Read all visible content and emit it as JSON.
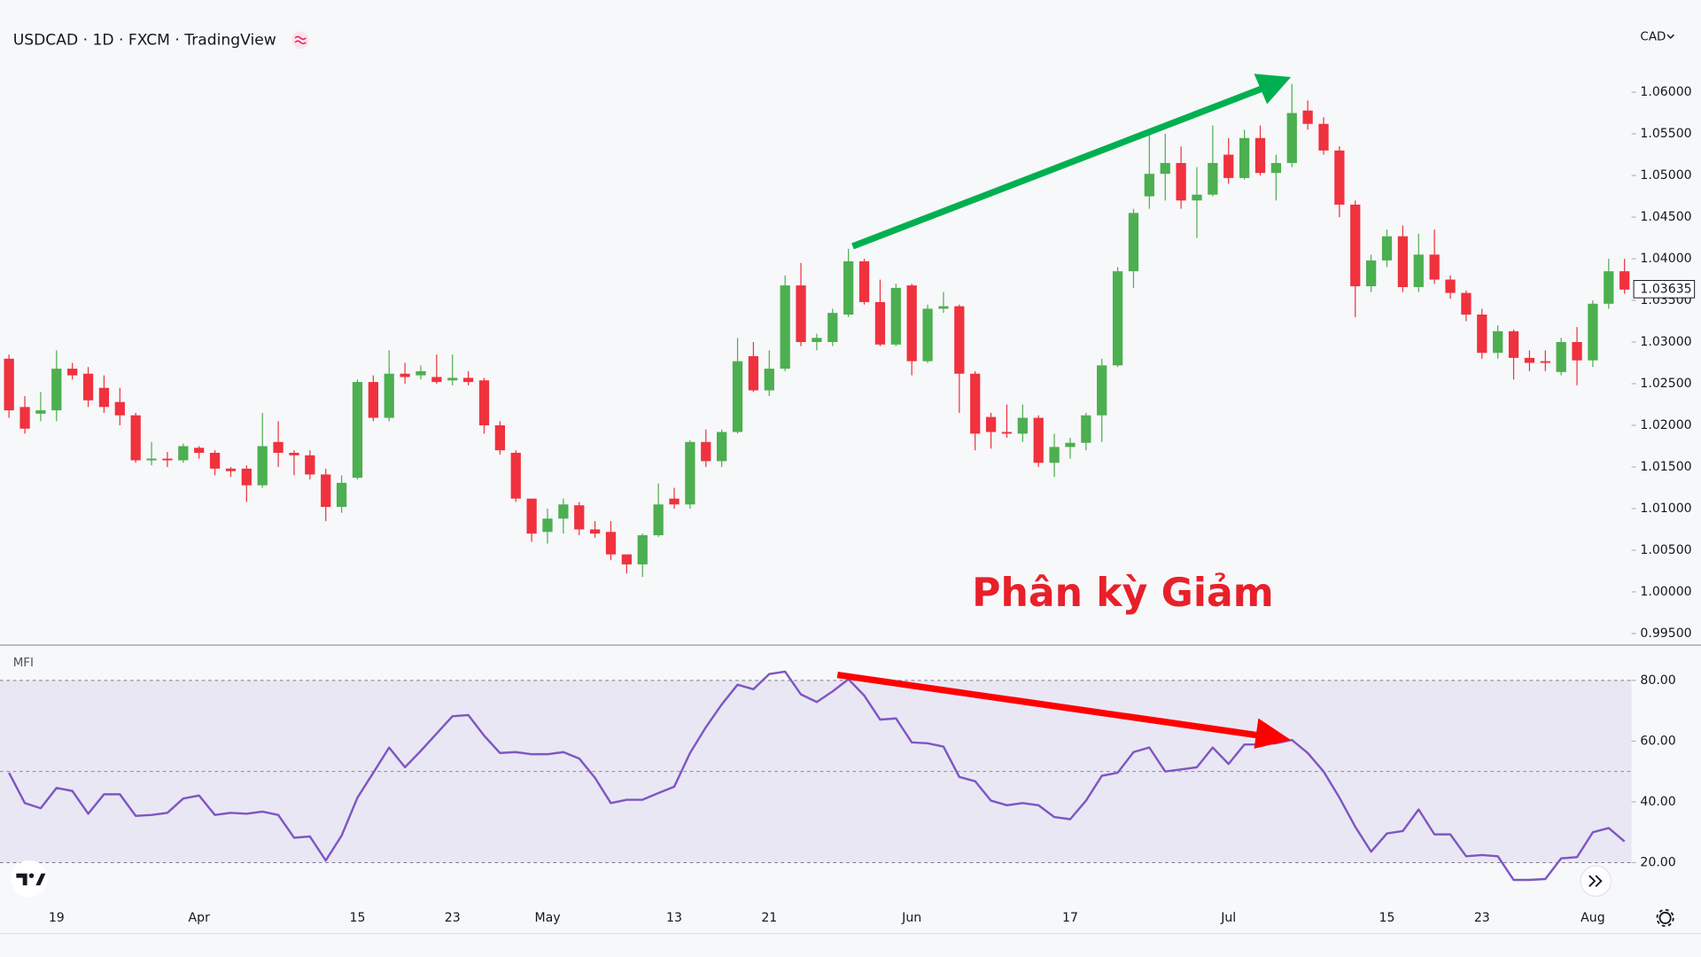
{
  "chart_data": [
    {
      "type": "candlestick",
      "title": "USDCAD · 1D · FXCM · TradingView",
      "currency": "CAD",
      "annotation": "Phân kỳ Giảm",
      "up_color": "#4caf50",
      "down_color": "#f0313e",
      "open": [
        1.028,
        1.0222,
        1.0214,
        1.0218,
        1.0268,
        1.0262,
        1.0245,
        1.0228,
        1.0212,
        1.0158,
        1.016,
        1.0158,
        1.0173,
        1.0167,
        1.0148,
        1.0148,
        1.0128,
        1.018,
        1.0167,
        1.0164,
        1.0141,
        1.0102,
        1.0137,
        1.0252,
        1.0209,
        1.0262,
        1.026,
        1.0258,
        1.0254,
        1.0257,
        1.0254,
        1.02,
        1.0167,
        1.0112,
        1.0072,
        1.0088,
        1.0104,
        1.0075,
        1.0072,
        1.0045,
        1.0033,
        1.0068,
        1.0112,
        1.0105,
        1.018,
        1.0157,
        1.0192,
        1.0283,
        1.0242,
        1.0268,
        1.0368,
        1.03,
        1.03,
        1.0333,
        1.0397,
        1.0348,
        1.0297,
        1.0368,
        1.0277,
        1.034,
        1.0343,
        1.0262,
        1.021,
        1.0192,
        1.019,
        1.0209,
        1.0155,
        1.0174,
        1.0179,
        1.0212,
        1.0272,
        1.0385,
        1.0475,
        1.0502,
        1.0515,
        1.047,
        1.0477,
        1.0525,
        1.0497,
        1.0545,
        1.0503,
        1.0515,
        1.0578,
        1.0562,
        1.053,
        1.0465,
        1.0367,
        1.0398,
        1.0427,
        1.0366,
        1.0405,
        1.0375,
        1.0359,
        1.0333,
        1.0287,
        1.0313,
        1.0281,
        1.0277,
        1.0264,
        1.03,
        1.0278,
        1.0346,
        1.0385
      ],
      "high": [
        1.0285,
        1.0235,
        1.024,
        1.029,
        1.0275,
        1.027,
        1.026,
        1.0245,
        1.0215,
        1.018,
        1.0168,
        1.0178,
        1.0175,
        1.017,
        1.015,
        1.0152,
        1.0215,
        1.0205,
        1.017,
        1.017,
        1.0148,
        1.014,
        1.0255,
        1.026,
        1.029,
        1.0275,
        1.0272,
        1.0285,
        1.0285,
        1.0265,
        1.0257,
        1.0205,
        1.017,
        1.0112,
        1.01,
        1.0112,
        1.0108,
        1.0085,
        1.0085,
        1.0045,
        1.007,
        1.013,
        1.0125,
        1.0182,
        1.0195,
        1.0195,
        1.0305,
        1.03,
        1.029,
        1.038,
        1.0395,
        1.031,
        1.034,
        1.0412,
        1.04,
        1.0375,
        1.037,
        1.037,
        1.0345,
        1.036,
        1.0345,
        1.0265,
        1.0215,
        1.0225,
        1.0225,
        1.0212,
        1.019,
        1.0185,
        1.0215,
        1.028,
        1.039,
        1.046,
        1.055,
        1.055,
        1.0535,
        1.051,
        1.056,
        1.0545,
        1.0555,
        1.056,
        1.0525,
        1.061,
        1.059,
        1.057,
        1.0535,
        1.047,
        1.0405,
        1.0435,
        1.044,
        1.043,
        1.0435,
        1.038,
        1.0362,
        1.034,
        1.032,
        1.0315,
        1.029,
        1.029,
        1.0305,
        1.0318,
        1.035,
        1.04,
        1.04
      ],
      "low": [
        1.0209,
        1.019,
        1.0205,
        1.0205,
        1.0255,
        1.0222,
        1.0215,
        1.02,
        1.0155,
        1.0152,
        1.015,
        1.0155,
        1.016,
        1.014,
        1.0138,
        1.0108,
        1.0125,
        1.015,
        1.014,
        1.0135,
        1.0085,
        1.0095,
        1.0135,
        1.0205,
        1.0205,
        1.025,
        1.0255,
        1.025,
        1.0248,
        1.0248,
        1.019,
        1.0165,
        1.0108,
        1.006,
        1.0058,
        1.007,
        1.0068,
        1.0065,
        1.0038,
        1.0022,
        1.0018,
        1.0066,
        1.01,
        1.01,
        1.015,
        1.015,
        1.019,
        1.024,
        1.0235,
        1.0265,
        1.0295,
        1.029,
        1.0295,
        1.033,
        1.0345,
        1.0295,
        1.0295,
        1.026,
        1.0275,
        1.0335,
        1.0215,
        1.017,
        1.0172,
        1.0185,
        1.018,
        1.015,
        1.0138,
        1.016,
        1.017,
        1.018,
        1.027,
        1.0365,
        1.046,
        1.047,
        1.046,
        1.0425,
        1.0475,
        1.049,
        1.0495,
        1.05,
        1.047,
        1.051,
        1.0555,
        1.0525,
        1.045,
        1.033,
        1.036,
        1.039,
        1.036,
        1.036,
        1.037,
        1.0352,
        1.0325,
        1.028,
        1.028,
        1.0255,
        1.0265,
        1.0265,
        1.026,
        1.0248,
        1.027,
        1.034,
        1.0358
      ],
      "close": [
        1.0218,
        1.0196,
        1.0218,
        1.0268,
        1.026,
        1.023,
        1.0222,
        1.0212,
        1.0158,
        1.016,
        1.0158,
        1.0175,
        1.0167,
        1.0148,
        1.0145,
        1.0128,
        1.0175,
        1.0167,
        1.0164,
        1.0141,
        1.0102,
        1.0131,
        1.0252,
        1.0209,
        1.0262,
        1.0258,
        1.0265,
        1.0252,
        1.0257,
        1.0252,
        1.02,
        1.017,
        1.0112,
        1.007,
        1.0088,
        1.0105,
        1.0075,
        1.007,
        1.0045,
        1.0033,
        1.0068,
        1.0105,
        1.0105,
        1.018,
        1.0157,
        1.0192,
        1.0277,
        1.0242,
        1.0268,
        1.0368,
        1.03,
        1.0305,
        1.0335,
        1.0397,
        1.0348,
        1.0297,
        1.0365,
        1.0277,
        1.034,
        1.0343,
        1.0262,
        1.019,
        1.0192,
        1.019,
        1.0209,
        1.0155,
        1.0174,
        1.0179,
        1.0212,
        1.0272,
        1.0385,
        1.0455,
        1.0502,
        1.0515,
        1.047,
        1.0477,
        1.0515,
        1.0497,
        1.0545,
        1.0503,
        1.0515,
        1.0575,
        1.0562,
        1.053,
        1.0465,
        1.0367,
        1.0398,
        1.0427,
        1.0366,
        1.0405,
        1.0375,
        1.0359,
        1.0333,
        1.0287,
        1.0313,
        1.0281,
        1.0275,
        1.0275,
        1.03,
        1.0278,
        1.0346,
        1.0385,
        1.0363
      ],
      "last_price": 1.03635,
      "ylim": [
        0.99368,
        1.06521
      ],
      "yticks": [
        {
          "value": 0.995,
          "label": "0.99500"
        },
        {
          "value": 1.0,
          "label": "1.00000"
        },
        {
          "value": 1.005,
          "label": "1.00500"
        },
        {
          "value": 1.01,
          "label": "1.01000"
        },
        {
          "value": 1.015,
          "label": "1.01500"
        },
        {
          "value": 1.02,
          "label": "1.02000"
        },
        {
          "value": 1.025,
          "label": "1.02500"
        },
        {
          "value": 1.03,
          "label": "1.03000"
        },
        {
          "value": 1.035,
          "label": "1.03500"
        },
        {
          "value": 1.04,
          "label": "1.04000"
        },
        {
          "value": 1.045,
          "label": "1.04500"
        },
        {
          "value": 1.05,
          "label": "1.05000"
        },
        {
          "value": 1.055,
          "label": "1.05500"
        },
        {
          "value": 1.06,
          "label": "1.06000"
        }
      ]
    },
    {
      "type": "line",
      "title": "MFI",
      "color": "#7e57c2",
      "band_color": "#7e57c2",
      "band_levels": [
        20,
        50,
        80
      ],
      "categories": [
        null,
        null,
        null,
        "19",
        null,
        null,
        null,
        null,
        null,
        null,
        null,
        null,
        "Apr",
        null,
        null,
        null,
        null,
        null,
        null,
        null,
        null,
        null,
        "15",
        null,
        null,
        null,
        null,
        null,
        "23",
        null,
        null,
        null,
        null,
        null,
        "May",
        null,
        null,
        null,
        null,
        null,
        null,
        null,
        "13",
        null,
        null,
        null,
        null,
        null,
        "21",
        null,
        null,
        null,
        null,
        null,
        null,
        null,
        null,
        "Jun",
        null,
        null,
        null,
        null,
        null,
        null,
        null,
        null,
        null,
        "17",
        null,
        null,
        null,
        null,
        null,
        null,
        null,
        null,
        null,
        "Jul",
        null,
        null,
        null,
        null,
        null,
        null,
        null,
        null,
        null,
        "15",
        null,
        null,
        null,
        null,
        null,
        "23",
        null,
        null,
        null,
        null,
        null,
        null,
        "Aug",
        null,
        null
      ],
      "values": [
        49.6,
        39.6,
        37.9,
        44.6,
        43.6,
        36.1,
        42.5,
        42.5,
        35.4,
        35.7,
        36.4,
        41.1,
        42.1,
        35.7,
        36.4,
        36.1,
        36.8,
        35.7,
        28.2,
        28.6,
        20.7,
        28.9,
        41.4,
        49.6,
        57.9,
        51.4,
        56.8,
        62.5,
        68.2,
        68.6,
        61.8,
        56.1,
        56.4,
        55.7,
        55.7,
        56.4,
        54.3,
        47.9,
        39.6,
        40.7,
        40.7,
        42.9,
        45.0,
        56.1,
        64.6,
        72.1,
        78.6,
        77.1,
        82.1,
        82.9,
        75.4,
        72.9,
        76.4,
        80.4,
        75.0,
        67.1,
        67.5,
        59.6,
        59.3,
        58.2,
        48.2,
        46.8,
        40.4,
        38.9,
        39.6,
        38.9,
        35.0,
        34.3,
        40.4,
        48.6,
        49.6,
        56.4,
        57.9,
        50.0,
        50.7,
        51.4,
        57.9,
        52.5,
        58.9,
        58.9,
        59.3,
        60.4,
        56.1,
        50.0,
        41.4,
        31.8,
        23.6,
        29.6,
        30.4,
        37.5,
        29.3,
        29.3,
        22.1,
        22.5,
        22.1,
        14.3,
        14.3,
        14.6,
        21.4,
        21.8,
        30.0,
        31.4,
        27.0
      ],
      "ylim": [
        7.5,
        90.4
      ],
      "yticks": [
        {
          "value": 20,
          "label": "20.00"
        },
        {
          "value": 40,
          "label": "40.00"
        },
        {
          "value": 60,
          "label": "60.00"
        },
        {
          "value": 80,
          "label": "80.00"
        }
      ]
    }
  ]
}
